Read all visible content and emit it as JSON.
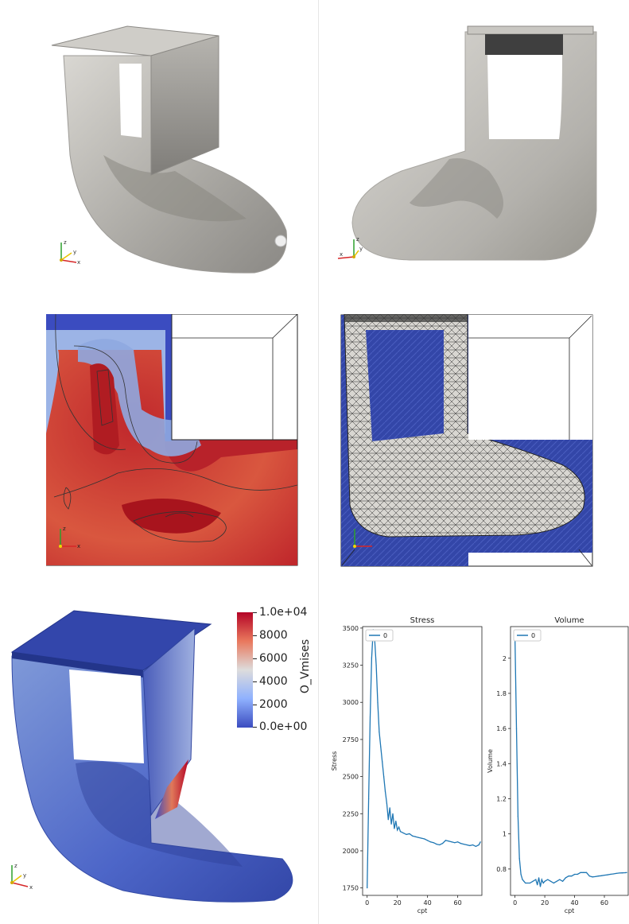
{
  "colorbar": {
    "title": "O_Vmises",
    "ticks": [
      "1.0e+04",
      "8000",
      "6000",
      "4000",
      "2000",
      "0.0e+00"
    ],
    "colors": {
      "high": "#b40426",
      "mid": "#dddddd",
      "low": "#3b4cc0"
    }
  },
  "axes_triad": {
    "x": "x",
    "y": "y",
    "z": "z"
  },
  "colors": {
    "mesh_gray": "#c9c7c2",
    "field_red": "#c0282c",
    "field_blue": "#3b4cc0",
    "line": "#1f77b4"
  },
  "chart_data": [
    {
      "type": "line",
      "title": "Stress",
      "xlabel": "cpt",
      "ylabel": "Stress",
      "xlim": [
        -3,
        76
      ],
      "ylim": [
        1700,
        3510
      ],
      "xticks": [
        0,
        20,
        40,
        60
      ],
      "yticks": [
        1750,
        2000,
        2250,
        2500,
        2750,
        3000,
        3250,
        3500
      ],
      "grid": false,
      "legend": "top-left",
      "series": [
        {
          "name": "0",
          "x": [
            0,
            1,
            2,
            3,
            4,
            5,
            6,
            7,
            8,
            9,
            10,
            11,
            12,
            13,
            14,
            15,
            16,
            17,
            18,
            19,
            20,
            21,
            22,
            24,
            26,
            28,
            30,
            32,
            34,
            36,
            38,
            40,
            42,
            44,
            46,
            48,
            50,
            52,
            54,
            56,
            58,
            60,
            62,
            64,
            66,
            68,
            70,
            72,
            74,
            75
          ],
          "y": [
            1750,
            2350,
            2900,
            3300,
            3490,
            3420,
            3250,
            3000,
            2800,
            2700,
            2600,
            2500,
            2400,
            2320,
            2210,
            2290,
            2180,
            2250,
            2150,
            2200,
            2140,
            2160,
            2130,
            2120,
            2110,
            2115,
            2100,
            2095,
            2090,
            2085,
            2080,
            2070,
            2060,
            2055,
            2045,
            2040,
            2050,
            2070,
            2065,
            2060,
            2055,
            2060,
            2050,
            2045,
            2040,
            2035,
            2040,
            2030,
            2040,
            2060
          ]
        }
      ]
    },
    {
      "type": "line",
      "title": "Volume",
      "xlabel": "cpt",
      "ylabel": "Volume",
      "xlim": [
        -3,
        76
      ],
      "ylim": [
        0.65,
        2.18
      ],
      "xticks": [
        0,
        20,
        40,
        60
      ],
      "yticks": [
        0.8,
        1.0,
        1.2,
        1.4,
        1.6,
        1.8,
        2.0
      ],
      "grid": false,
      "legend": "top-left",
      "series": [
        {
          "name": "0",
          "x": [
            0,
            1,
            2,
            3,
            4,
            5,
            6,
            7,
            8,
            10,
            12,
            14,
            15,
            16,
            17,
            18,
            19,
            20,
            22,
            24,
            26,
            28,
            30,
            32,
            34,
            36,
            38,
            40,
            42,
            44,
            46,
            48,
            50,
            52,
            54,
            56,
            58,
            60,
            62,
            64,
            66,
            68,
            70,
            72,
            74,
            75
          ],
          "y": [
            2.12,
            1.6,
            1.1,
            0.86,
            0.77,
            0.74,
            0.73,
            0.72,
            0.72,
            0.72,
            0.73,
            0.74,
            0.71,
            0.75,
            0.7,
            0.74,
            0.72,
            0.73,
            0.74,
            0.73,
            0.72,
            0.73,
            0.74,
            0.73,
            0.75,
            0.76,
            0.76,
            0.77,
            0.77,
            0.78,
            0.78,
            0.78,
            0.76,
            0.755,
            0.757,
            0.76,
            0.762,
            0.765,
            0.767,
            0.77,
            0.772,
            0.775,
            0.777,
            0.778,
            0.779,
            0.78
          ]
        }
      ]
    }
  ]
}
